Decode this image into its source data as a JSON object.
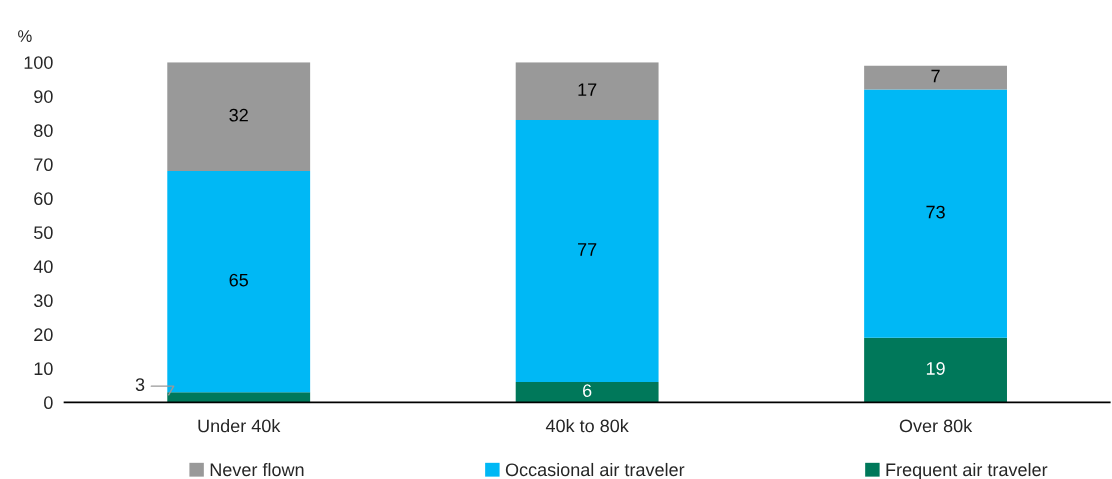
{
  "chart_data": {
    "type": "bar",
    "stacked": true,
    "ylabel": "%",
    "categories": [
      "Under 40k",
      "40k to 80k",
      "Over 80k"
    ],
    "series": [
      {
        "name": "Frequent air traveler",
        "color": "#00785a",
        "values": [
          3,
          6,
          19
        ]
      },
      {
        "name": "Occasional air traveler",
        "color": "#00b8f5",
        "values": [
          65,
          77,
          73
        ]
      },
      {
        "name": "Never flown",
        "color": "#999999",
        "values": [
          32,
          17,
          7
        ]
      }
    ],
    "ylim": [
      0,
      100
    ],
    "yticks": [
      0,
      10,
      20,
      30,
      40,
      50,
      60,
      70,
      80,
      90,
      100
    ],
    "grid": false,
    "legend": "bottom",
    "data_labels": true
  }
}
